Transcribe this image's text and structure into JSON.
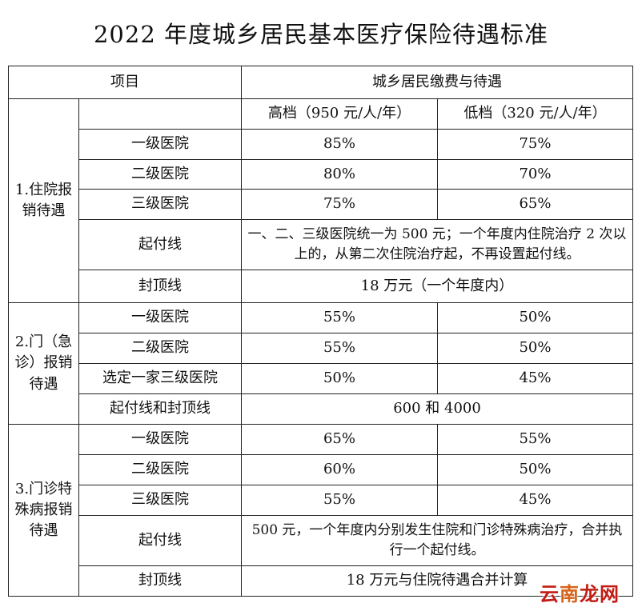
{
  "title": "2022 年度城乡居民基本医疗保险待遇标准",
  "header": {
    "item": "项目",
    "group": "城乡居民缴费与待遇",
    "high": "高档（950 元/人/年）",
    "low": "低档（320 元/人/年）"
  },
  "sections": {
    "inpatient": {
      "label": "1.住院报销待遇",
      "rows": [
        {
          "name": "一级医院",
          "high": "85%",
          "low": "75%"
        },
        {
          "name": "二级医院",
          "high": "80%",
          "low": "70%"
        },
        {
          "name": "三级医院",
          "high": "75%",
          "low": "65%"
        }
      ],
      "threshold_label": "起付线",
      "threshold_text": "一、二、三级医院统一为 500 元；一个年度内住院治疗 2 次以上的，从第二次住院治疗起，不再设置起付线。",
      "cap_label": "封顶线",
      "cap_text": "18 万元（一个年度内）"
    },
    "outpatient": {
      "label": "2.门（急诊）报销待遇",
      "rows": [
        {
          "name": "一级医院",
          "high": "55%",
          "low": "50%"
        },
        {
          "name": "二级医院",
          "high": "55%",
          "low": "50%"
        },
        {
          "name": "选定一家三级医院",
          "high": "50%",
          "low": "45%"
        }
      ],
      "combined_label": "起付线和封顶线",
      "combined_text": "600 和 4000"
    },
    "special": {
      "label": "3.门诊特殊病报销待遇",
      "rows": [
        {
          "name": "一级医院",
          "high": "65%",
          "low": "55%"
        },
        {
          "name": "二级医院",
          "high": "60%",
          "low": "50%"
        },
        {
          "name": "三级医院",
          "high": "55%",
          "low": "45%"
        }
      ],
      "threshold_label": "起付线",
      "threshold_text": "500 元，一个年度内分别发生住院和门诊特殊病治疗，合并执行一个起付线。",
      "cap_label": "封顶线",
      "cap_text": "18 万元与住院待遇合并计算"
    }
  },
  "watermark": {
    "part1": "云",
    "part2": "南",
    "part3": "龙网"
  }
}
